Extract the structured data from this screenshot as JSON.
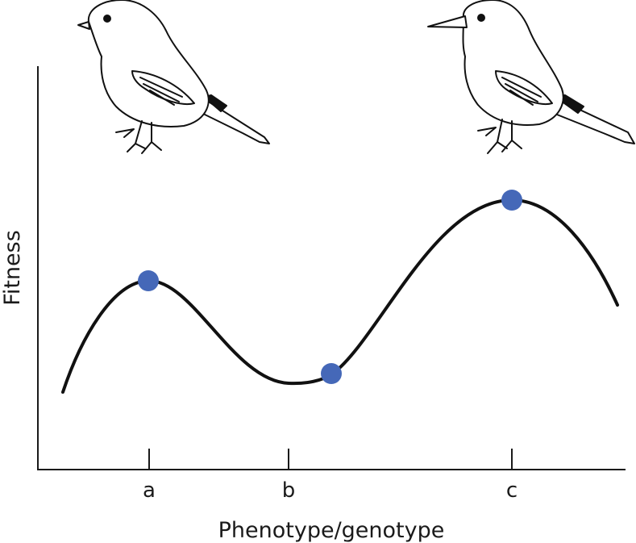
{
  "figure": {
    "xlabel": "Phenotype/genotype",
    "ylabel": "Fitness",
    "ticks": [
      "a",
      "b",
      "c"
    ]
  },
  "illustrations": [
    {
      "name": "short-beaked-bird",
      "beak": "short"
    },
    {
      "name": "long-beaked-bird",
      "beak": "long"
    }
  ],
  "colors": {
    "curve": "#111111",
    "point": "#4568b8",
    "axis": "#1a1a1a"
  }
}
